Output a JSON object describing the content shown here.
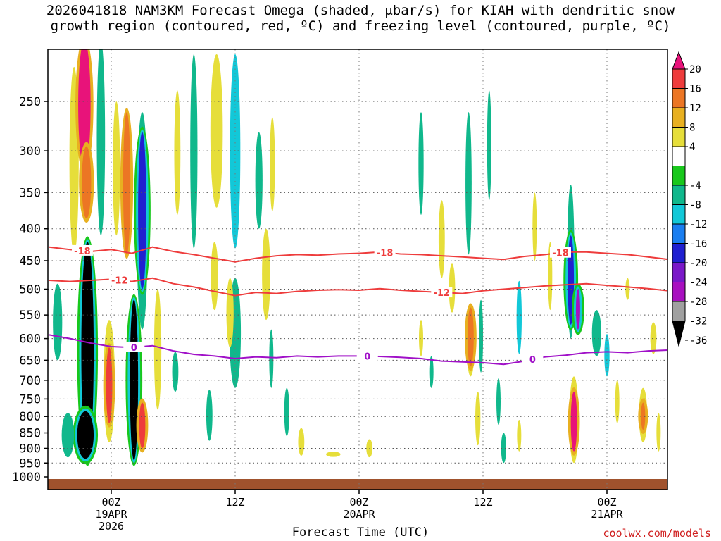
{
  "chart_data": {
    "type": "heatmap",
    "title_line1": "2026041818 NAM3KM Forecast Omega (shaded, μbar/s) for KIAH with dendritic snow",
    "title_line2": "growth region (contoured, red, ºC) and freezing level (contoured, purple, ºC)",
    "xlabel": "Forecast Time (UTC)",
    "ylabel": "",
    "y_axis": {
      "units": "hPa",
      "range": [
        1000,
        200
      ],
      "ticks": [
        250,
        300,
        350,
        400,
        450,
        500,
        550,
        600,
        650,
        700,
        750,
        800,
        850,
        900,
        950,
        1000
      ]
    },
    "x_axis": {
      "units": "forecast hour",
      "range": [
        -6,
        54
      ],
      "ticks": [
        {
          "hour": 0,
          "label1": "00Z",
          "label2": "19APR",
          "label3": "2026"
        },
        {
          "hour": 12,
          "label1": "12Z",
          "label2": "",
          "label3": ""
        },
        {
          "hour": 24,
          "label1": "00Z",
          "label2": "20APR",
          "label3": ""
        },
        {
          "hour": 36,
          "label1": "12Z",
          "label2": "",
          "label3": ""
        },
        {
          "hour": 48,
          "label1": "00Z",
          "label2": "21APR",
          "label3": ""
        }
      ]
    },
    "colorbar": {
      "labels": [
        "20",
        "16",
        "12",
        "8",
        "4",
        "-4",
        "-8",
        "-12",
        "-16",
        "-20",
        "-24",
        "-28",
        "-32",
        "-36"
      ],
      "levels": [
        20,
        16,
        12,
        8,
        4,
        -4,
        -8,
        -12,
        -16,
        -20,
        -24,
        -28,
        -32,
        -36
      ],
      "colors": [
        "#e8137a",
        "#ee3c3c",
        "#ec7624",
        "#e8b020",
        "#e6de3a",
        "#ffffff",
        "#18c81c",
        "#10b88c",
        "#12c8d8",
        "#1a7ef0",
        "#2020d0",
        "#7a18c8",
        "#a810c0",
        "#a0a0a0",
        "#000000"
      ]
    },
    "omega_cells": [
      {
        "t": -2.6,
        "p": 240,
        "w": 1.2,
        "h": 160,
        "v": 20
      },
      {
        "t": -2.4,
        "p": 340,
        "w": 0.9,
        "h": 90,
        "v": 12
      },
      {
        "t": -3.6,
        "p": 330,
        "w": 0.9,
        "h": 220,
        "v": 4
      },
      {
        "t": -1.0,
        "p": 300,
        "w": 0.8,
        "h": 220,
        "v": -8
      },
      {
        "t": -2.3,
        "p": 680,
        "w": 1.2,
        "h": 520,
        "v": -36
      },
      {
        "t": -2.5,
        "p": 860,
        "w": 1.6,
        "h": 150,
        "v": -36
      },
      {
        "t": -4.2,
        "p": 860,
        "w": 1.2,
        "h": 140,
        "v": -8
      },
      {
        "t": -5.2,
        "p": 570,
        "w": 0.9,
        "h": 160,
        "v": -8
      },
      {
        "t": -0.2,
        "p": 720,
        "w": 0.6,
        "h": 200,
        "v": 16
      },
      {
        "t": -0.2,
        "p": 720,
        "w": 1.1,
        "h": 320,
        "v": 4
      },
      {
        "t": 0.5,
        "p": 330,
        "w": 0.7,
        "h": 160,
        "v": 4
      },
      {
        "t": 1.5,
        "p": 350,
        "w": 0.7,
        "h": 180,
        "v": 12
      },
      {
        "t": 2.2,
        "p": 730,
        "w": 0.8,
        "h": 420,
        "v": -36
      },
      {
        "t": 3.0,
        "p": 390,
        "w": 0.8,
        "h": 220,
        "v": -20
      },
      {
        "t": 3.0,
        "p": 420,
        "w": 1.1,
        "h": 320,
        "v": -8
      },
      {
        "t": 3.0,
        "p": 830,
        "w": 0.6,
        "h": 140,
        "v": 16
      },
      {
        "t": 4.5,
        "p": 640,
        "w": 0.7,
        "h": 280,
        "v": 4
      },
      {
        "t": 6.2,
        "p": 680,
        "w": 0.6,
        "h": 100,
        "v": -8
      },
      {
        "t": 6.4,
        "p": 310,
        "w": 0.6,
        "h": 140,
        "v": 4
      },
      {
        "t": 8.0,
        "p": 320,
        "w": 0.7,
        "h": 220,
        "v": -8
      },
      {
        "t": 9.5,
        "p": 800,
        "w": 0.6,
        "h": 150,
        "v": -8
      },
      {
        "t": 10.2,
        "p": 290,
        "w": 1.2,
        "h": 160,
        "v": 4
      },
      {
        "t": 10.0,
        "p": 480,
        "w": 0.7,
        "h": 120,
        "v": 4
      },
      {
        "t": 11.5,
        "p": 550,
        "w": 0.7,
        "h": 140,
        "v": 4
      },
      {
        "t": 12.0,
        "p": 320,
        "w": 1.0,
        "h": 220,
        "v": -12
      },
      {
        "t": 12.0,
        "p": 600,
        "w": 1.1,
        "h": 240,
        "v": -8
      },
      {
        "t": 14.3,
        "p": 340,
        "w": 0.7,
        "h": 120,
        "v": -8
      },
      {
        "t": 15.0,
        "p": 480,
        "w": 0.8,
        "h": 160,
        "v": 4
      },
      {
        "t": 15.5,
        "p": 650,
        "w": 0.4,
        "h": 140,
        "v": -8
      },
      {
        "t": 15.6,
        "p": 320,
        "w": 0.5,
        "h": 110,
        "v": 4
      },
      {
        "t": 17.0,
        "p": 790,
        "w": 0.5,
        "h": 140,
        "v": -8
      },
      {
        "t": 18.4,
        "p": 880,
        "w": 0.6,
        "h": 90,
        "v": 4
      },
      {
        "t": 21.5,
        "p": 920,
        "w": 1.4,
        "h": 18,
        "v": 4
      },
      {
        "t": 25.0,
        "p": 900,
        "w": 0.6,
        "h": 60,
        "v": 4
      },
      {
        "t": 30.0,
        "p": 320,
        "w": 0.5,
        "h": 120,
        "v": -8
      },
      {
        "t": 30.0,
        "p": 600,
        "w": 0.3,
        "h": 80,
        "v": 4
      },
      {
        "t": 31.0,
        "p": 680,
        "w": 0.3,
        "h": 80,
        "v": -8
      },
      {
        "t": 32.0,
        "p": 420,
        "w": 0.6,
        "h": 120,
        "v": 4
      },
      {
        "t": 33.0,
        "p": 500,
        "w": 0.6,
        "h": 90,
        "v": 4
      },
      {
        "t": 34.6,
        "p": 350,
        "w": 0.6,
        "h": 180,
        "v": -8
      },
      {
        "t": 34.8,
        "p": 600,
        "w": 0.6,
        "h": 130,
        "v": 12
      },
      {
        "t": 34.8,
        "p": 610,
        "w": 0.8,
        "h": 160,
        "v": 4
      },
      {
        "t": 35.8,
        "p": 600,
        "w": 0.4,
        "h": 160,
        "v": -8
      },
      {
        "t": 35.5,
        "p": 810,
        "w": 0.5,
        "h": 160,
        "v": 4
      },
      {
        "t": 36.6,
        "p": 300,
        "w": 0.4,
        "h": 120,
        "v": -8
      },
      {
        "t": 37.5,
        "p": 760,
        "w": 0.4,
        "h": 130,
        "v": -8
      },
      {
        "t": 38.0,
        "p": 900,
        "w": 0.5,
        "h": 100,
        "v": -8
      },
      {
        "t": 39.5,
        "p": 560,
        "w": 0.5,
        "h": 150,
        "v": -12
      },
      {
        "t": 39.5,
        "p": 860,
        "w": 0.4,
        "h": 100,
        "v": 4
      },
      {
        "t": 41.0,
        "p": 400,
        "w": 0.4,
        "h": 100,
        "v": 4
      },
      {
        "t": 42.5,
        "p": 480,
        "w": 0.4,
        "h": 120,
        "v": 4
      },
      {
        "t": 44.5,
        "p": 470,
        "w": 0.7,
        "h": 260,
        "v": -8
      },
      {
        "t": 44.5,
        "p": 490,
        "w": 0.6,
        "h": 160,
        "v": -20
      },
      {
        "t": 45.2,
        "p": 540,
        "w": 0.4,
        "h": 80,
        "v": -28
      },
      {
        "t": 44.8,
        "p": 820,
        "w": 0.9,
        "h": 260,
        "v": 4
      },
      {
        "t": 44.8,
        "p": 820,
        "w": 0.6,
        "h": 180,
        "v": 20
      },
      {
        "t": 47.0,
        "p": 590,
        "w": 0.9,
        "h": 100,
        "v": -8
      },
      {
        "t": 48.0,
        "p": 640,
        "w": 0.5,
        "h": 100,
        "v": -12
      },
      {
        "t": 49.0,
        "p": 760,
        "w": 0.4,
        "h": 120,
        "v": 4
      },
      {
        "t": 50.0,
        "p": 500,
        "w": 0.3,
        "h": 40,
        "v": 4
      },
      {
        "t": 51.5,
        "p": 800,
        "w": 0.8,
        "h": 160,
        "v": 4
      },
      {
        "t": 51.5,
        "p": 800,
        "w": 0.4,
        "h": 80,
        "v": 12
      },
      {
        "t": 52.5,
        "p": 600,
        "w": 0.6,
        "h": 70,
        "v": 4
      },
      {
        "t": 53.0,
        "p": 850,
        "w": 0.4,
        "h": 120,
        "v": 4
      }
    ],
    "contours": [
      {
        "name": "minus18",
        "color": "#ee3c3c",
        "label": "-18",
        "label_hours": [
          -2.8,
          26.5,
          43.5
        ],
        "t": [
          -6,
          -4,
          -2,
          0,
          2,
          4,
          6,
          8,
          10,
          12,
          14,
          16,
          18,
          20,
          22,
          24,
          26,
          28,
          30,
          32,
          34,
          36,
          38,
          40,
          42,
          44,
          46,
          48,
          50,
          52,
          54
        ],
        "p": [
          428,
          432,
          435,
          432,
          438,
          428,
          435,
          440,
          446,
          452,
          446,
          442,
          440,
          441,
          439,
          438,
          436,
          439,
          440,
          442,
          444,
          446,
          448,
          443,
          440,
          436,
          436,
          438,
          440,
          444,
          448
        ]
      },
      {
        "name": "minus12",
        "color": "#ee3c3c",
        "label": "-12",
        "label_hours": [
          0.8,
          32.0
        ],
        "t": [
          -6,
          -4,
          -2,
          0,
          2,
          4,
          6,
          8,
          10,
          12,
          14,
          16,
          18,
          20,
          22,
          24,
          26,
          28,
          30,
          32,
          34,
          36,
          38,
          40,
          42,
          44,
          46,
          48,
          50,
          52,
          54
        ],
        "p": [
          484,
          486,
          484,
          482,
          486,
          480,
          490,
          496,
          504,
          512,
          506,
          508,
          504,
          502,
          501,
          502,
          499,
          502,
          504,
          506,
          508,
          503,
          500,
          497,
          494,
          492,
          490,
          493,
          496,
          499,
          503
        ]
      },
      {
        "name": "zero",
        "color": "#a010c8",
        "label": "0",
        "label_hours": [
          2.2,
          24.8,
          40.8
        ],
        "t": [
          -6,
          -4,
          -2,
          0,
          2,
          4,
          6,
          8,
          10,
          12,
          14,
          16,
          18,
          20,
          22,
          24,
          26,
          28,
          30,
          32,
          34,
          36,
          38,
          40,
          42,
          44,
          46,
          48,
          50,
          52,
          54
        ],
        "p": [
          592,
          600,
          610,
          618,
          620,
          616,
          628,
          636,
          640,
          646,
          642,
          644,
          640,
          642,
          640,
          640,
          641,
          643,
          646,
          652,
          654,
          656,
          660,
          652,
          642,
          638,
          632,
          630,
          632,
          628,
          626
        ]
      }
    ],
    "terrain": {
      "color": "#a0522d",
      "pressure": 1000
    }
  },
  "credit": "coolwx.com/models"
}
